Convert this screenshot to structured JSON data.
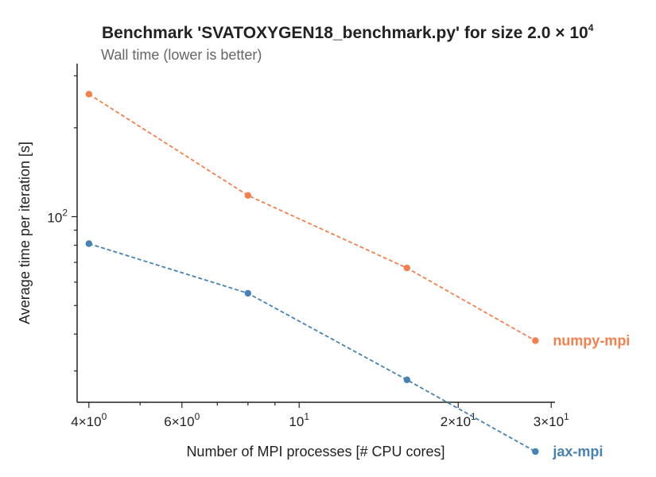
{
  "chart_data": {
    "type": "line",
    "title": "Benchmark 'SVATOXYGEN18_benchmark.py' for size 2.0",
    "title_times": "×",
    "title_base": "10",
    "title_exp": "4",
    "subtitle": "Wall time (lower is better)",
    "xlabel": "Number of MPI processes [# CPU cores]",
    "ylabel": "Average time per iteration [s]",
    "xscale": "log",
    "yscale": "log",
    "xlim": [
      3.8,
      30.5
    ],
    "ylim": [
      23.5,
      330
    ],
    "x_ticks": [
      {
        "value": 4,
        "mantissa": "4",
        "times": "×",
        "base": "10",
        "exp": "0"
      },
      {
        "value": 6,
        "mantissa": "6",
        "times": "×",
        "base": "10",
        "exp": "0"
      },
      {
        "value": 10,
        "mantissa": "",
        "times": "",
        "base": "10",
        "exp": "1"
      },
      {
        "value": 20,
        "mantissa": "2",
        "times": "×",
        "base": "10",
        "exp": "1"
      },
      {
        "value": 30,
        "mantissa": "3",
        "times": "×",
        "base": "10",
        "exp": "1"
      }
    ],
    "x_minor_ticks": [
      5,
      7,
      8,
      9
    ],
    "y_ticks": [
      {
        "value": 100,
        "base": "10",
        "exp": "2"
      }
    ],
    "y_minor_ticks": [
      30,
      40,
      50,
      60,
      70,
      80,
      90,
      200,
      300
    ],
    "grid": false,
    "legend": "none (labels at line ends)",
    "series": [
      {
        "name": "numpy-mpi",
        "color": "#f4804e",
        "x": [
          4,
          8,
          16,
          28
        ],
        "y": [
          260,
          118,
          67,
          38
        ]
      },
      {
        "name": "jax-mpi",
        "color": "#4682b4",
        "x": [
          4,
          8,
          16,
          28
        ],
        "y": [
          81,
          55,
          28,
          16
        ]
      }
    ]
  }
}
